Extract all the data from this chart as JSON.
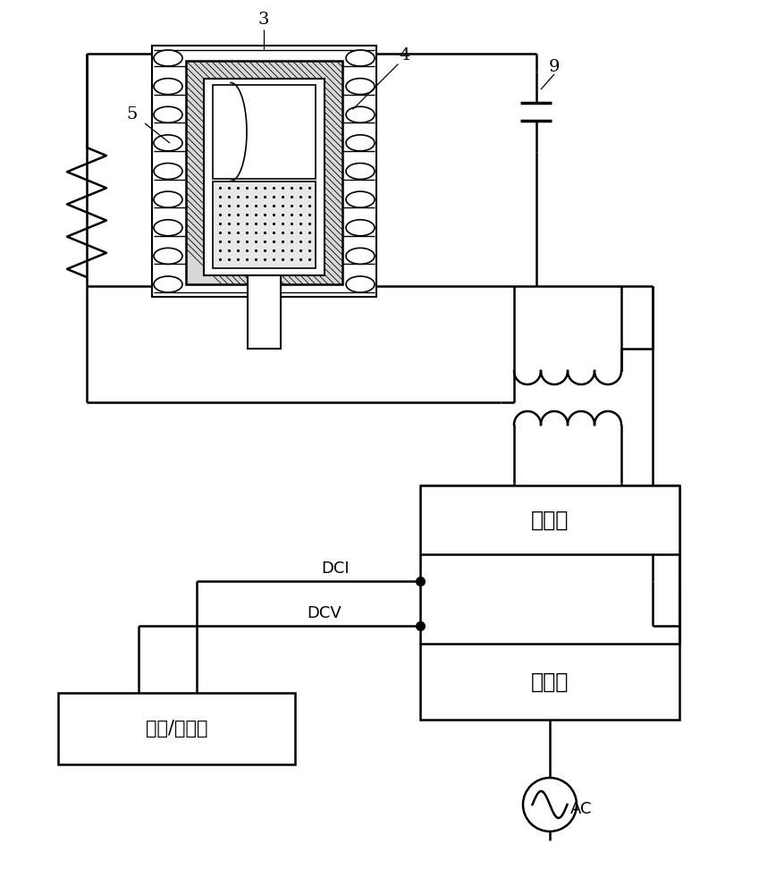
{
  "bg_color": "#ffffff",
  "line_color": "#000000",
  "line_width": 1.8,
  "label_3": "3",
  "label_4": "4",
  "label_5": "5",
  "label_9": "9",
  "label_inverter": "逆变器",
  "label_converter": "转换器",
  "label_detector": "检测/记录器",
  "label_DCI": "DCI",
  "label_DCV": "DCV",
  "label_AC": "AC",
  "figsize": [
    8.49,
    10.0
  ],
  "dpi": 100
}
